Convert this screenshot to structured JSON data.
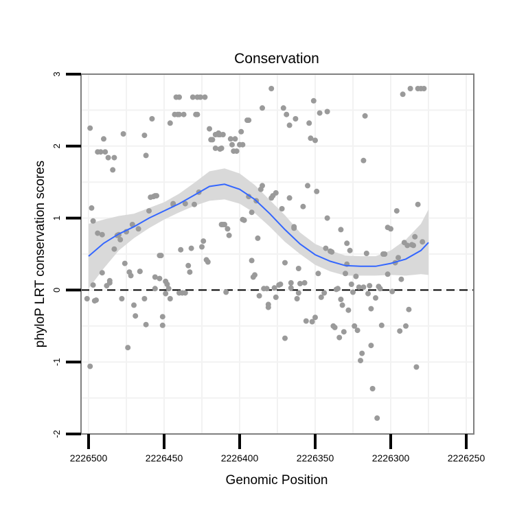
{
  "chart_data": {
    "type": "scatter",
    "title": "Conservation",
    "xlabel": "Genomic Position",
    "ylabel": "phyloP LRT conservation scores",
    "x_reversed": true,
    "xlim": [
      2226250,
      2226500
    ],
    "ylim": [
      -2,
      3
    ],
    "x_ticks": [
      2226500,
      2226450,
      2226400,
      2226350,
      2226300,
      2226250
    ],
    "x_tick_labels": [
      "2226500",
      "2226450",
      "2226400",
      "2226350",
      "2226300",
      "2226250"
    ],
    "y_ticks": [
      -2,
      -1,
      0,
      1,
      2,
      3
    ],
    "y_tick_labels": [
      "-2",
      "-1",
      "0",
      "1",
      "2",
      "3"
    ],
    "reference_line": {
      "y": 0,
      "style": "dashed"
    },
    "colors": {
      "points": "#9a9a9a",
      "smooth": "#3366ff",
      "ribbon": "#d9d9d9",
      "grid": "#f2f2f2",
      "panel_border": "#7f7f7f"
    },
    "points": [
      [
        2226499,
        2.25
      ],
      [
        2226498,
        1.14
      ],
      [
        2226497,
        0.96
      ],
      [
        2226501,
        -0.12
      ],
      [
        2226499,
        -1.06
      ],
      [
        2226497,
        0.07
      ],
      [
        2226496,
        -0.15
      ],
      [
        2226495,
        -0.14
      ],
      [
        2226494,
        1.92
      ],
      [
        2226492,
        1.92
      ],
      [
        2226494,
        0.79
      ],
      [
        2226491,
        0.77
      ],
      [
        2226490,
        2.1
      ],
      [
        2226489,
        1.92
      ],
      [
        2226487,
        1.84
      ],
      [
        2226484,
        1.67
      ],
      [
        2226483,
        1.84
      ],
      [
        2226491,
        0.24
      ],
      [
        2226488,
        0.06
      ],
      [
        2226486,
        0.1
      ],
      [
        2226486,
        0.13
      ],
      [
        2226483,
        0.57
      ],
      [
        2226481,
        0.76
      ],
      [
        2226479,
        0.7
      ],
      [
        2226480,
        0.77
      ],
      [
        2226477,
        2.17
      ],
      [
        2226478,
        -0.12
      ],
      [
        2226476,
        0.37
      ],
      [
        2226475,
        0.81
      ],
      [
        2226474,
        -0.8
      ],
      [
        2226473,
        0.25
      ],
      [
        2226472,
        0.2
      ],
      [
        2226471,
        0.91
      ],
      [
        2226470,
        -0.21
      ],
      [
        2226469,
        -0.36
      ],
      [
        2226467,
        0.85
      ],
      [
        2226466,
        0.26
      ],
      [
        2226466,
        0.26
      ],
      [
        2226463,
        2.15
      ],
      [
        2226462,
        1.87
      ],
      [
        2226463,
        -0.12
      ],
      [
        2226462,
        -0.48
      ],
      [
        2226460,
        1.1
      ],
      [
        2226459,
        1.29
      ],
      [
        2226458,
        2.38
      ],
      [
        2226457,
        1.3
      ],
      [
        2226456,
        1.31
      ],
      [
        2226455,
        1.31
      ],
      [
        2226456,
        0.18
      ],
      [
        2226456,
        0.02
      ],
      [
        2226453,
        0.48
      ],
      [
        2226452,
        0.48
      ],
      [
        2226453,
        0.16
      ],
      [
        2226451,
        -0.37
      ],
      [
        2226451,
        -0.49
      ],
      [
        2226449,
        -0.05
      ],
      [
        2226449,
        0.12
      ],
      [
        2226448,
        0.08
      ],
      [
        2226447,
        0.02
      ],
      [
        2226446,
        -0.12
      ],
      [
        2226446,
        2.32
      ],
      [
        2226444,
        1.2
      ],
      [
        2226444,
        1.19
      ],
      [
        2226443,
        2.44
      ],
      [
        2226442,
        2.68
      ],
      [
        2226441,
        2.44
      ],
      [
        2226440,
        2.68
      ],
      [
        2226440,
        2.44
      ],
      [
        2226440,
        -0.04
      ],
      [
        2226438,
        -0.04
      ],
      [
        2226439,
        0.56
      ],
      [
        2226437,
        2.44
      ],
      [
        2226436,
        -0.04
      ],
      [
        2226436,
        1.2
      ],
      [
        2226434,
        0.34
      ],
      [
        2226433,
        0.25
      ],
      [
        2226432,
        0.58
      ],
      [
        2226431,
        2.68
      ],
      [
        2226430,
        1.19
      ],
      [
        2226429,
        2.44
      ],
      [
        2226428,
        2.68
      ],
      [
        2226428,
        2.44
      ],
      [
        2226427,
        1.36
      ],
      [
        2226426,
        2.68
      ],
      [
        2226425,
        0.6
      ],
      [
        2226424,
        0.68
      ],
      [
        2226422,
        0.42
      ],
      [
        2226421,
        0.39
      ],
      [
        2226423,
        2.68
      ],
      [
        2226420,
        2.24
      ],
      [
        2226419,
        2.09
      ],
      [
        2226418,
        2.09
      ],
      [
        2226416,
        2.16
      ],
      [
        2226416,
        1.97
      ],
      [
        2226414,
        2.16
      ],
      [
        2226414,
        2.18
      ],
      [
        2226413,
        1.96
      ],
      [
        2226412,
        0.91
      ],
      [
        2226411,
        0.91
      ],
      [
        2226410,
        0.91
      ],
      [
        2226413,
        2.16
      ],
      [
        2226412,
        1.97
      ],
      [
        2226411,
        2.16
      ],
      [
        2226409,
        -0.03
      ],
      [
        2226408,
        0.85
      ],
      [
        2226407,
        0.76
      ],
      [
        2226406,
        2.1
      ],
      [
        2226405,
        2.02
      ],
      [
        2226404,
        1.93
      ],
      [
        2226403,
        2.1
      ],
      [
        2226402,
        1.93
      ],
      [
        2226400,
        2.02
      ],
      [
        2226399,
        2.2
      ],
      [
        2226398,
        2.02
      ],
      [
        2226398,
        0.98
      ],
      [
        2226397,
        0.97
      ],
      [
        2226395,
        2.36
      ],
      [
        2226394,
        2.36
      ],
      [
        2226394,
        1.3
      ],
      [
        2226392,
        1.08
      ],
      [
        2226392,
        0.41
      ],
      [
        2226391,
        0.18
      ],
      [
        2226390,
        0.21
      ],
      [
        2226389,
        1.24
      ],
      [
        2226388,
        0.72
      ],
      [
        2226387,
        -0.08
      ],
      [
        2226386,
        1.4
      ],
      [
        2226385,
        2.53
      ],
      [
        2226385,
        1.45
      ],
      [
        2226384,
        0.02
      ],
      [
        2226382,
        0.02
      ],
      [
        2226381,
        -0.2
      ],
      [
        2226381,
        -0.24
      ],
      [
        2226379,
        1.28
      ],
      [
        2226379,
        2.8
      ],
      [
        2226378,
        1.31
      ],
      [
        2226377,
        0.03
      ],
      [
        2226376,
        -0.1
      ],
      [
        2226376,
        1.35
      ],
      [
        2226374,
        0.07
      ],
      [
        2226373,
        0.08
      ],
      [
        2226372,
        1.13
      ],
      [
        2226371,
        2.53
      ],
      [
        2226370,
        -0.67
      ],
      [
        2226370,
        0.38
      ],
      [
        2226369,
        2.44
      ],
      [
        2226367,
        2.29
      ],
      [
        2226367,
        1.28
      ],
      [
        2226366,
        0.03
      ],
      [
        2226366,
        0.1
      ],
      [
        2226364,
        0.86
      ],
      [
        2226364,
        0.88
      ],
      [
        2226363,
        2.38
      ],
      [
        2226362,
        -0.12
      ],
      [
        2226361,
        0.3
      ],
      [
        2226361,
        -0.04
      ],
      [
        2226360,
        0.09
      ],
      [
        2226358,
        1.16
      ],
      [
        2226357,
        0.1
      ],
      [
        2226356,
        -0.43
      ],
      [
        2226355,
        1.45
      ],
      [
        2226354,
        2.32
      ],
      [
        2226353,
        2.11
      ],
      [
        2226352,
        -0.44
      ],
      [
        2226351,
        2.63
      ],
      [
        2226350,
        2.08
      ],
      [
        2226350,
        -0.38
      ],
      [
        2226349,
        1.37
      ],
      [
        2226348,
        0.23
      ],
      [
        2226347,
        2.46
      ],
      [
        2226346,
        -0.1
      ],
      [
        2226344,
        -0.04
      ],
      [
        2226343,
        0.58
      ],
      [
        2226342,
        1.0
      ],
      [
        2226342,
        2.48
      ],
      [
        2226340,
        0.54
      ],
      [
        2226339,
        0.53
      ],
      [
        2226338,
        -0.5
      ],
      [
        2226337,
        -0.52
      ],
      [
        2226336,
        0.01
      ],
      [
        2226335,
        0.02
      ],
      [
        2226334,
        -0.66
      ],
      [
        2226333,
        0.84
      ],
      [
        2226333,
        -0.13
      ],
      [
        2226332,
        -0.21
      ],
      [
        2226331,
        -0.58
      ],
      [
        2226330,
        0.23
      ],
      [
        2226329,
        0.65
      ],
      [
        2226329,
        0.36
      ],
      [
        2226328,
        -0.28
      ],
      [
        2226327,
        0.55
      ],
      [
        2226326,
        0.08
      ],
      [
        2226325,
        -0.03
      ],
      [
        2226324,
        -0.5
      ],
      [
        2226323,
        0.19
      ],
      [
        2226322,
        -0.56
      ],
      [
        2226321,
        0.04
      ],
      [
        2226320,
        -0.98
      ],
      [
        2226319,
        -0.88
      ],
      [
        2226318,
        1.8
      ],
      [
        2226318,
        0.04
      ],
      [
        2226317,
        2.42
      ],
      [
        2226316,
        0.51
      ],
      [
        2226315,
        -0.05
      ],
      [
        2226314,
        0.06
      ],
      [
        2226313,
        -0.77
      ],
      [
        2226313,
        -0.26
      ],
      [
        2226312,
        -1.37
      ],
      [
        2226310,
        -0.11
      ],
      [
        2226309,
        -1.78
      ],
      [
        2226308,
        0.05
      ],
      [
        2226307,
        0.02
      ],
      [
        2226306,
        -0.49
      ],
      [
        2226305,
        0.5
      ],
      [
        2226304,
        0.5
      ],
      [
        2226302,
        0.22
      ],
      [
        2226302,
        0.87
      ],
      [
        2226300,
        0.85
      ],
      [
        2226299,
        -0.02
      ],
      [
        2226297,
        0.38
      ],
      [
        2226296,
        1.1
      ],
      [
        2226295,
        0.45
      ],
      [
        2226294,
        -0.57
      ],
      [
        2226293,
        0.15
      ],
      [
        2226292,
        2.72
      ],
      [
        2226291,
        0.66
      ],
      [
        2226290,
        -0.5
      ],
      [
        2226289,
        0.62
      ],
      [
        2226288,
        -0.27
      ],
      [
        2226287,
        2.8
      ],
      [
        2226286,
        0.63
      ],
      [
        2226285,
        0.62
      ],
      [
        2226284,
        0.74
      ],
      [
        2226283,
        -1.07
      ],
      [
        2226282,
        1.19
      ],
      [
        2226282,
        2.8
      ],
      [
        2226280,
        2.8
      ],
      [
        2226279,
        0.67
      ],
      [
        2226278,
        2.8
      ]
    ],
    "smooth_curve": {
      "x": [
        2226500,
        2226490,
        2226480,
        2226470,
        2226460,
        2226450,
        2226440,
        2226430,
        2226420,
        2226410,
        2226400,
        2226390,
        2226380,
        2226370,
        2226360,
        2226350,
        2226340,
        2226330,
        2226320,
        2226310,
        2226300,
        2226290,
        2226280,
        2226275
      ],
      "y": [
        0.47,
        0.65,
        0.78,
        0.88,
        1.0,
        1.1,
        1.2,
        1.32,
        1.44,
        1.47,
        1.4,
        1.26,
        1.06,
        0.84,
        0.64,
        0.49,
        0.4,
        0.34,
        0.33,
        0.33,
        0.37,
        0.43,
        0.55,
        0.66
      ],
      "lower": [
        0.02,
        0.3,
        0.55,
        0.72,
        0.86,
        0.98,
        1.08,
        1.17,
        1.24,
        1.26,
        1.2,
        1.07,
        0.88,
        0.67,
        0.5,
        0.35,
        0.26,
        0.2,
        0.2,
        0.2,
        0.21,
        0.2,
        0.22,
        0.21
      ],
      "upper": [
        0.92,
        0.98,
        1.03,
        1.06,
        1.14,
        1.22,
        1.34,
        1.49,
        1.65,
        1.69,
        1.62,
        1.46,
        1.25,
        1.04,
        0.8,
        0.64,
        0.55,
        0.48,
        0.47,
        0.47,
        0.55,
        0.7,
        0.92,
        1.12
      ]
    }
  }
}
